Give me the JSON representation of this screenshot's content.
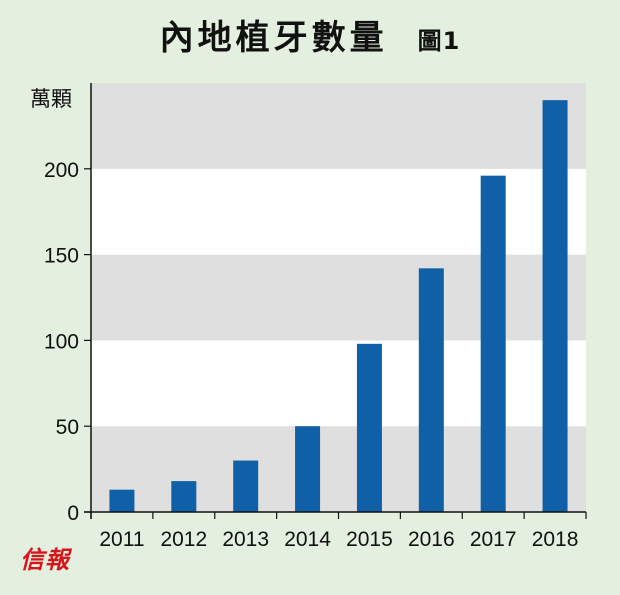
{
  "title": "內地植牙數量",
  "figure_label": "圖1",
  "logo_text": "信報",
  "chart_data": {
    "type": "bar",
    "title": "內地植牙數量",
    "ylabel": "萬顆",
    "xlabel": "",
    "categories": [
      "2011",
      "2012",
      "2013",
      "2014",
      "2015",
      "2016",
      "2017",
      "2018"
    ],
    "values": [
      13,
      18,
      30,
      50,
      98,
      142,
      196,
      240
    ],
    "ylim": [
      0,
      250
    ],
    "yticks": [
      0,
      50,
      100,
      150,
      200
    ],
    "bar_color": "#1060a8",
    "band_color": "#e0dfdf",
    "grid": "alternating horizontal bands",
    "legend": "none"
  }
}
